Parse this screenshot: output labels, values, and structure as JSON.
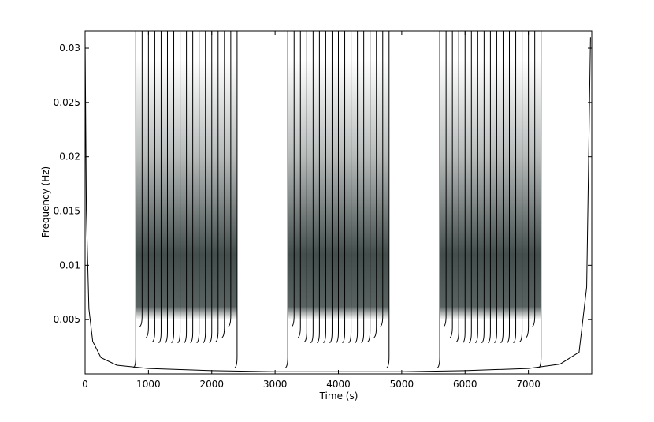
{
  "chart_data": {
    "type": "spectrogram",
    "x_label": "Time (s)",
    "y_label": "Frequency (Hz)",
    "xlim": [
      0,
      8000
    ],
    "ylim": [
      0,
      0.0316
    ],
    "xticks": [
      0,
      1000,
      2000,
      3000,
      4000,
      5000,
      6000,
      7000
    ],
    "yticks": [
      0.005,
      0.01,
      0.015,
      0.02,
      0.025,
      0.03
    ],
    "bands": [
      [
        800,
        2400
      ],
      [
        3200,
        4800
      ],
      [
        5600,
        7200
      ]
    ],
    "shade_color": "#2f3b39",
    "shade": {
      "levels": [
        0.005,
        0.0062,
        0.011,
        0.02,
        0.029
      ],
      "opacity": [
        0,
        0.8,
        0.9,
        0.35,
        0
      ]
    },
    "line_color": "#000000",
    "ridges": {
      "x": [
        800,
        900,
        1000,
        1100,
        1200,
        1300,
        1400,
        1500,
        1600,
        1700,
        1800,
        1900,
        2000,
        2100,
        2200,
        2300,
        2400,
        3200,
        3300,
        3400,
        3500,
        3600,
        3700,
        3800,
        3900,
        4000,
        4100,
        4200,
        4300,
        4400,
        4500,
        4600,
        4700,
        4800,
        5600,
        5700,
        5800,
        5900,
        6000,
        6100,
        6200,
        6300,
        6400,
        6500,
        6600,
        6700,
        6800,
        6900,
        7000,
        7100,
        7200
      ],
      "low": [
        0.0007,
        0.0045,
        0.0035,
        0.0031,
        0.003,
        0.003,
        0.003,
        0.003,
        0.003,
        0.003,
        0.003,
        0.003,
        0.003,
        0.0031,
        0.0035,
        0.0045,
        0.0007,
        0.0007,
        0.0045,
        0.0035,
        0.0031,
        0.003,
        0.003,
        0.003,
        0.003,
        0.003,
        0.003,
        0.003,
        0.003,
        0.003,
        0.0031,
        0.0035,
        0.0045,
        0.0007,
        0.0007,
        0.0045,
        0.0035,
        0.0031,
        0.003,
        0.003,
        0.003,
        0.003,
        0.003,
        0.003,
        0.003,
        0.003,
        0.003,
        0.0031,
        0.0035,
        0.0045,
        0.0007
      ]
    },
    "curve": {
      "x": [
        0,
        20,
        60,
        120,
        250,
        500,
        1000,
        2000,
        3000,
        4000,
        5000,
        6000,
        7000,
        7500,
        7800,
        7920,
        7980
      ],
      "y": [
        0.031,
        0.015,
        0.006,
        0.003,
        0.0015,
        0.0008,
        0.0005,
        0.0003,
        0.0002,
        0.0002,
        0.0002,
        0.0003,
        0.0005,
        0.0009,
        0.002,
        0.008,
        0.031
      ]
    }
  }
}
